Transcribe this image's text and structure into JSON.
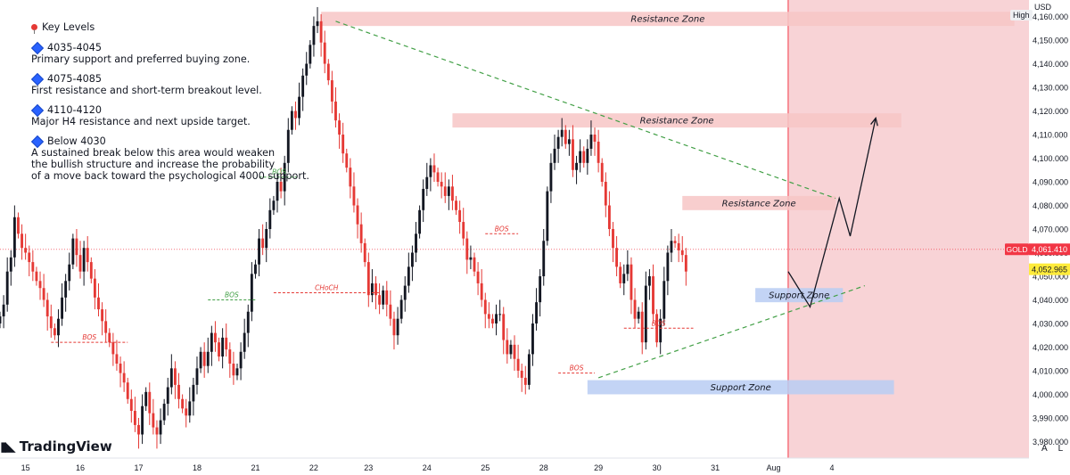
{
  "notes": {
    "heading": "Key Levels",
    "levels": [
      {
        "title": "4035-4045",
        "text": [
          "Primary support and preferred buying zone."
        ]
      },
      {
        "title": "4075-4085",
        "text": [
          "First resistance and short-term breakout level."
        ]
      },
      {
        "title": "4110-4120",
        "text": [
          "Major H4 resistance and next upside target."
        ]
      },
      {
        "title": "Below 4030",
        "text": [
          "A sustained break below this area would weaken",
          "the bullish structure and increase the probability",
          "of a move back toward the psychological 4000 support."
        ]
      }
    ]
  },
  "branding": {
    "logo_text": "TradingView",
    "currency": "USD",
    "high_label": "High",
    "axis_auto": "A",
    "axis_log": "L"
  },
  "colors": {
    "up": "#131722",
    "down": "#e53935",
    "resistance": "#f7c5c5",
    "support": "#b8cdf3",
    "projection": "#f2a8ad",
    "trend": "#43a047",
    "bos": "#e53935",
    "price_label": "#f23645",
    "last_label": "#ffeb3b"
  },
  "chart_data": {
    "type": "candlestick",
    "symbol": "GOLD",
    "y_range": [
      3973,
      4167
    ],
    "y_ticks": [
      "4,160.000",
      "4,150.000",
      "4,140.000",
      "4,130.000",
      "4,120.000",
      "4,110.000",
      "4,100.000",
      "4,090.000",
      "4,080.000",
      "4,070.000",
      "4,060.000",
      "4,050.000",
      "4,040.000",
      "4,030.000",
      "4,020.000",
      "4,010.000",
      "4,000.000",
      "3,990.000",
      "3,980.000"
    ],
    "y_tick_values": [
      4160,
      4150,
      4140,
      4130,
      4120,
      4110,
      4100,
      4090,
      4080,
      4070,
      4060,
      4050,
      4040,
      4030,
      4020,
      4010,
      4000,
      3990,
      3980
    ],
    "x_ticks": [
      "15",
      "16",
      "17",
      "18",
      "21",
      "22",
      "23",
      "24",
      "25",
      "28",
      "29",
      "30",
      "31",
      "Aug",
      "4"
    ],
    "x_tick_index": [
      7,
      22,
      38,
      54,
      70,
      86,
      101,
      117,
      133,
      149,
      164,
      180,
      196,
      212,
      228
    ],
    "current_price": {
      "label": "GOLD",
      "value": "4,061.410",
      "y": 4061.41
    },
    "last_price": {
      "value": "4,052.965",
      "y": 4052.965
    },
    "closes": [
      4033,
      4038,
      4052,
      4058,
      4075,
      4068,
      4062,
      4060,
      4056,
      4052,
      4048,
      4045,
      4040,
      4033,
      4028,
      4025,
      4032,
      4041,
      4048,
      4055,
      4066,
      4059,
      4052,
      4062,
      4056,
      4049,
      4041,
      4036,
      4031,
      4026,
      4022,
      4017,
      4013,
      4009,
      4005,
      3998,
      3993,
      3987,
      3983,
      3995,
      4001,
      3992,
      3986,
      3983,
      3989,
      3996,
      4003,
      4011,
      4004,
      3998,
      3994,
      3991,
      3997,
      4004,
      4011,
      4018,
      4012,
      4018,
      4026,
      4022,
      4016,
      4024,
      4019,
      4013,
      4008,
      4011,
      4018,
      4026,
      4035,
      4051,
      4055,
      4066,
      4062,
      4070,
      4078,
      4082,
      4090,
      4086,
      4098,
      4112,
      4120,
      4117,
      4126,
      4135,
      4140,
      4148,
      4156,
      4158,
      4149,
      4140,
      4133,
      4124,
      4116,
      4110,
      4102,
      4096,
      4088,
      4080,
      4072,
      4064,
      4056,
      4042,
      4047,
      4042,
      4038,
      4044,
      4038,
      4032,
      4025,
      4032,
      4040,
      4046,
      4054,
      4060,
      4068,
      4078,
      4087,
      4092,
      4097,
      4094,
      4090,
      4088,
      4084,
      4088,
      4082,
      4078,
      4073,
      4066,
      4057,
      4058,
      4052,
      4047,
      4040,
      4034,
      4032,
      4030,
      4034,
      4034,
      4023,
      4017,
      4021,
      4015,
      4010,
      4007,
      4004,
      4017,
      4030,
      4039,
      4050,
      4065,
      4086,
      4098,
      4104,
      4109,
      4112,
      4106,
      4108,
      4095,
      4098,
      4103,
      4098,
      4104,
      4110,
      4107,
      4098,
      4090,
      4080,
      4070,
      4062,
      4054,
      4047,
      4051,
      4055,
      4040,
      4032,
      4035,
      4022,
      4046,
      4050,
      4034,
      4022,
      4032,
      4048,
      4060,
      4065,
      4064,
      4061,
      4059,
      4052
    ],
    "zones": [
      {
        "label": "Resistance Zone",
        "kind": "resistance",
        "from_index": 88,
        "to_index": 278,
        "y_top": 4162,
        "y_bottom": 4156
      },
      {
        "label": "Resistance Zone",
        "kind": "resistance",
        "from_index": 124,
        "to_index": 247,
        "y_top": 4119,
        "y_bottom": 4113
      },
      {
        "label": "Resistance Zone",
        "kind": "resistance",
        "from_index": 187,
        "to_index": 229,
        "y_top": 4084,
        "y_bottom": 4078
      },
      {
        "label": "Support Zone",
        "kind": "support",
        "from_index": 207,
        "to_index": 231,
        "y_top": 4045,
        "y_bottom": 4039
      },
      {
        "label": "Support Zone",
        "kind": "support",
        "from_index": 161,
        "to_index": 245,
        "y_top": 4006,
        "y_bottom": 4000
      }
    ],
    "trendlines": [
      {
        "from": [
          92,
          4158
        ],
        "to": [
          229,
          4083
        ]
      },
      {
        "from": [
          164,
          4007
        ],
        "to": [
          237,
          4046
        ]
      }
    ],
    "structure_marks": [
      {
        "label": "BOS",
        "color": "bos",
        "x1": 14,
        "x2": 35,
        "y": 4022
      },
      {
        "label": "BOS",
        "color": "trend",
        "x1": 57,
        "x2": 70,
        "y": 4040
      },
      {
        "label": "BOS",
        "color": "trend",
        "x1": 71,
        "x2": 82,
        "y": 4092
      },
      {
        "label": "CHoCH",
        "color": "bos",
        "x1": 75,
        "x2": 104,
        "y": 4043
      },
      {
        "label": "BOS",
        "color": "bos",
        "x1": 133,
        "x2": 142,
        "y": 4068
      },
      {
        "label": "BOS",
        "color": "bos",
        "x1": 153,
        "x2": 163,
        "y": 4009
      },
      {
        "label": "BOS",
        "color": "bos",
        "x1": 171,
        "x2": 190,
        "y": 4028
      }
    ],
    "projection_zone_from_index": 216,
    "projection_path": [
      [
        216,
        4052
      ],
      [
        222,
        4037
      ],
      [
        230,
        4083
      ],
      [
        233,
        4067
      ],
      [
        240,
        4117
      ]
    ]
  }
}
